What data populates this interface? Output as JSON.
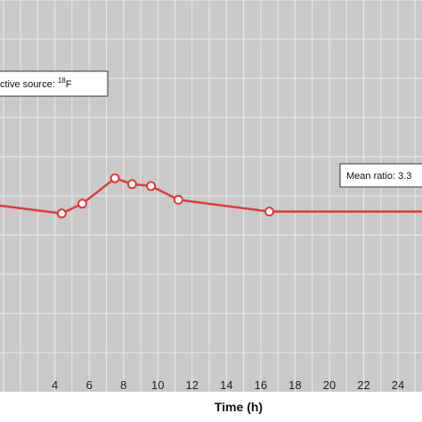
{
  "chart_data": {
    "type": "line",
    "xlabel": "Time (h)",
    "xlim": [
      0.8,
      25.4
    ],
    "ylim": [
      0,
      10
    ],
    "x_ticks": [
      4,
      6,
      8,
      10,
      12,
      14,
      16,
      18,
      20,
      22,
      24
    ],
    "y_grid": [
      1,
      2,
      3,
      4,
      5,
      6,
      7,
      8,
      9,
      10
    ],
    "grid": true,
    "background": "#c9c9c9",
    "line_color": "#e23a3a",
    "series": [
      {
        "x": [
          0.8,
          4.4,
          5.6,
          7.5,
          8.5,
          9.6,
          11.2,
          16.5,
          25.4
        ],
        "y": [
          4.75,
          4.55,
          4.8,
          5.45,
          5.3,
          5.25,
          4.9,
          4.6,
          4.6
        ],
        "markers": [
          false,
          true,
          true,
          true,
          true,
          true,
          true,
          true,
          false
        ]
      }
    ],
    "annotations": [
      {
        "id": "source",
        "pre": "ctive source: ",
        "sup": "18",
        "post": "F"
      },
      {
        "id": "ratio",
        "text": "Mean ratio: 3.3"
      }
    ]
  }
}
